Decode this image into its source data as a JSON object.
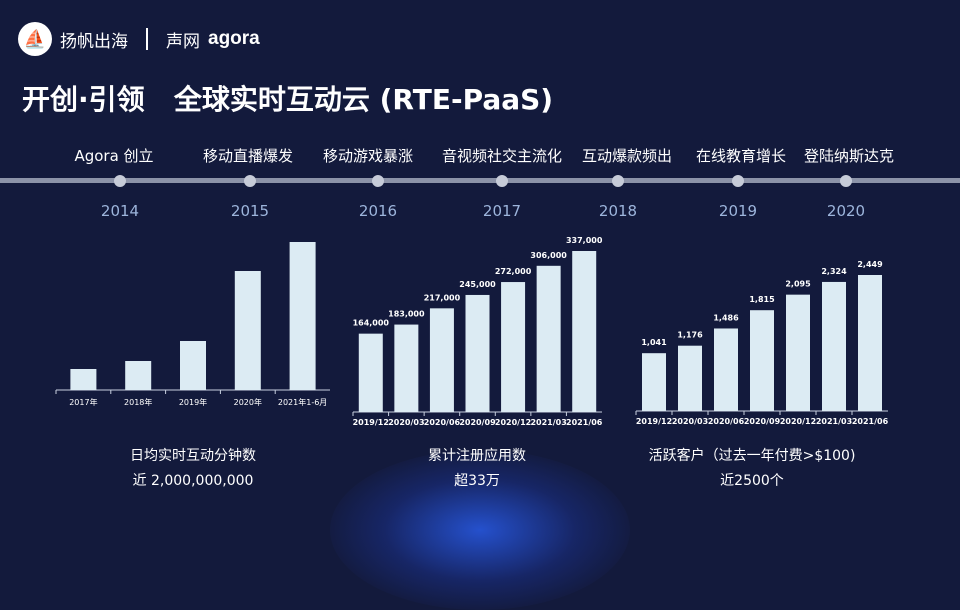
{
  "header": {
    "logo_text": "扬帆出海",
    "partner_cn": "声网",
    "partner_en": "agora"
  },
  "title": "开创·引领   全球实时互动云 (RTE-PaaS)",
  "timeline": {
    "events": [
      "Agora 创立",
      "移动直播爆发",
      "移动游戏暴涨",
      "音视频社交主流化",
      "互动爆款频出",
      "在线教育增长",
      "登陆纳斯达克"
    ],
    "years": [
      "2014",
      "2015",
      "2016",
      "2017",
      "2018",
      "2019",
      "2020"
    ]
  },
  "colors": {
    "background": "#131a3c",
    "bar": "#dcebf3",
    "year": "#9db5dc"
  },
  "chart_data": [
    {
      "type": "bar",
      "categories": [
        "2017年",
        "2018年",
        "2019年",
        "2020年",
        "2021年1-6月"
      ],
      "values": [
        21,
        29,
        49,
        119,
        148
      ],
      "title": "日均实时互动分钟数",
      "subtitle": "近 2,000,000,000",
      "data_labels": false
    },
    {
      "type": "bar",
      "categories": [
        "2019/12",
        "2020/03",
        "2020/06",
        "2020/09",
        "2020/12",
        "2021/03",
        "2021/06"
      ],
      "values": [
        164000,
        183000,
        217000,
        245000,
        272000,
        306000,
        337000
      ],
      "labels": [
        "164,000",
        "183,000",
        "217,000",
        "245,000",
        "272,000",
        "306,000",
        "337,000"
      ],
      "title": "累计注册应用数",
      "subtitle": "超33万"
    },
    {
      "type": "bar",
      "categories": [
        "2019/12",
        "2020/03",
        "2020/06",
        "2020/09",
        "2020/12",
        "2021/03",
        "2021/06"
      ],
      "values": [
        1041,
        1176,
        1486,
        1815,
        2095,
        2324,
        2449
      ],
      "labels": [
        "1,041",
        "1,176",
        "1,486",
        "1,815",
        "2,095",
        "2,324",
        "2,449"
      ],
      "title": "活跃客户（过去一年付费>$100)",
      "subtitle": "近2500个"
    }
  ]
}
